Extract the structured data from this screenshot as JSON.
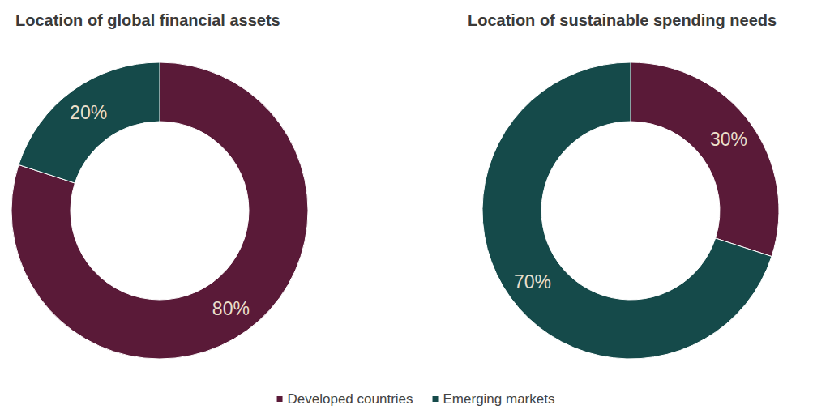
{
  "chart_data": [
    {
      "type": "pie",
      "title": "Location of global financial assets",
      "categories": [
        "Developed countries",
        "Emerging markets"
      ],
      "values": [
        80,
        20
      ],
      "value_labels": [
        "80%",
        "20%"
      ],
      "colors": [
        "#5a1a38",
        "#154a4a"
      ],
      "data_labels": true,
      "legend": "bottom"
    },
    {
      "type": "pie",
      "title": "Location of sustainable spending needs",
      "categories": [
        "Developed countries",
        "Emerging markets"
      ],
      "values": [
        30,
        70
      ],
      "value_labels": [
        "30%",
        "70%"
      ],
      "colors": [
        "#5a1a38",
        "#154a4a"
      ],
      "data_labels": true,
      "legend": "bottom"
    }
  ]
}
